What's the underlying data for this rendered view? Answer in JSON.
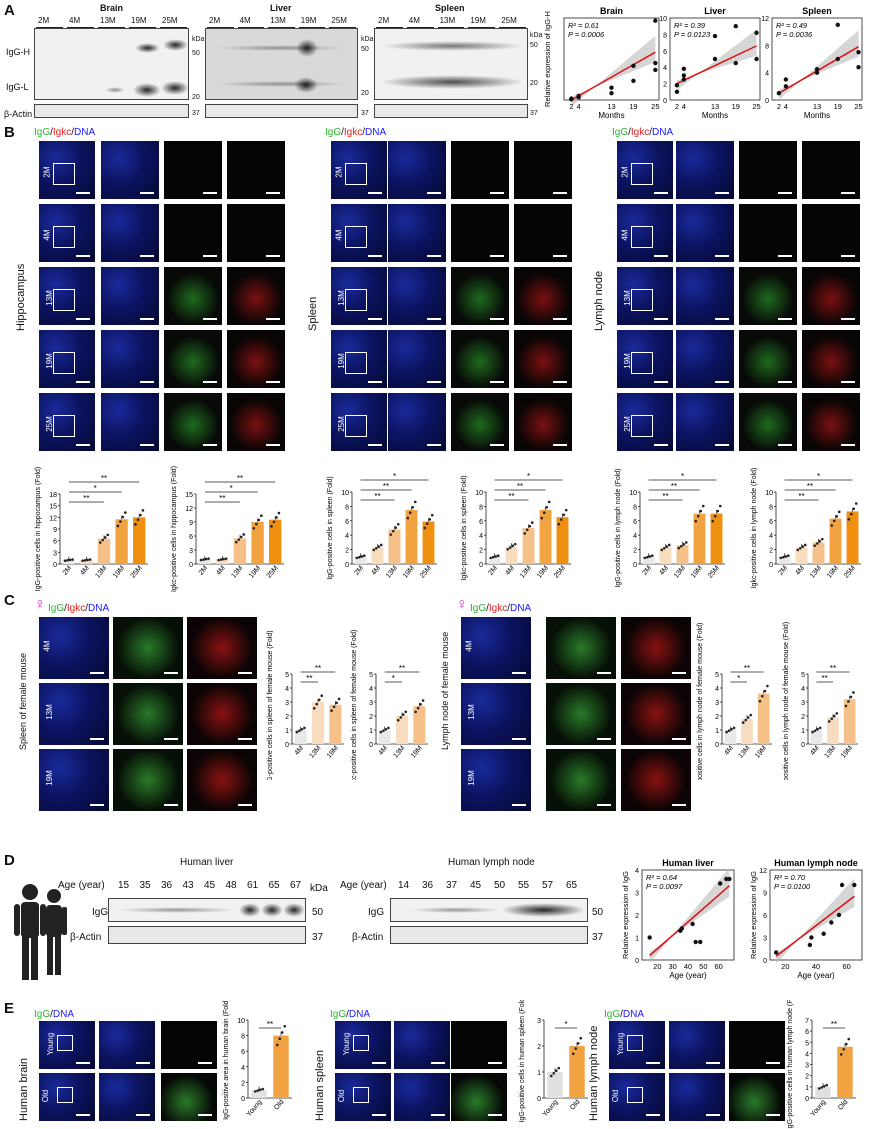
{
  "panels": {
    "A": "A",
    "B": "B",
    "C": "C",
    "D": "D",
    "E": "E"
  },
  "A": {
    "tissues": [
      "Brain",
      "Liver",
      "Spleen"
    ],
    "ages": [
      "2M",
      "4M",
      "13M",
      "19M",
      "25M"
    ],
    "igg_h": "IgG-H",
    "igg_l": "IgG-L",
    "actin": "β-Actin",
    "kda": "kDa",
    "mw": [
      "50",
      "20",
      "37"
    ],
    "scatter_ylabel": "Relative expression of IgG-H",
    "scatter_xlabel": "Months",
    "scatter_ticks": [
      "2",
      "4",
      "13",
      "19",
      "25"
    ]
  },
  "B": {
    "stain": {
      "igg": "IgG",
      "slash1": "/",
      "igkc": "Igkc",
      "slash2": "/",
      "dna": "DNA"
    },
    "tissues": [
      "Hippocampus",
      "Spleen",
      "Lymph node"
    ],
    "rows": [
      "2M",
      "4M",
      "13M",
      "19M",
      "25M"
    ]
  },
  "C": {
    "female_symbol": "♀",
    "left_tissue": "Spleen of female mouse",
    "right_tissue": "Lymph node of female mouse",
    "rows": [
      "4M",
      "13M",
      "19M"
    ]
  },
  "D": {
    "age_label": "Age (year)",
    "kda": "kDa",
    "liver_title": "Human liver",
    "lymph_title": "Human lymph node",
    "liver_ages": [
      "15",
      "35",
      "36",
      "43",
      "45",
      "48",
      "61",
      "65",
      "67"
    ],
    "lymph_ages": [
      "14",
      "36",
      "37",
      "45",
      "50",
      "55",
      "57",
      "65"
    ],
    "igg": "IgG",
    "actin": "β-Actin",
    "mw": [
      "50",
      "37"
    ],
    "scatter_ylabel": "Relative expression of IgG",
    "scatter_xlabel": "Age (year)"
  },
  "E": {
    "stain": {
      "igg": "IgG",
      "slash": "/",
      "dna": "DNA"
    },
    "tissues": [
      "Human brain",
      "Human spleen",
      "Human lymph node"
    ],
    "rows": [
      "Young",
      "Old"
    ]
  },
  "chart_data": [
    {
      "type": "scatter",
      "title": "Brain",
      "xlabel": "Months",
      "ylabel": "Relative expression of IgG-H",
      "annotation": [
        "R² = 0.61",
        "P = 0.0006"
      ],
      "xlim": [
        0,
        26
      ],
      "ylim": [
        0,
        60
      ],
      "x": [
        2,
        2,
        4,
        4,
        13,
        13,
        19,
        19,
        25,
        25,
        25
      ],
      "y": [
        0.5,
        1,
        2,
        3,
        5,
        9,
        14,
        25,
        27,
        22,
        58
      ],
      "fit": [
        [
          2,
          0
        ],
        [
          25,
          35
        ]
      ],
      "ticks": {
        "x": [
          "2",
          "4",
          "13",
          "19",
          "25"
        ]
      }
    },
    {
      "type": "scatter",
      "title": "Liver",
      "xlabel": "Months",
      "ylabel": "",
      "annotation": [
        "R² = 0.39",
        "P = 0.0123"
      ],
      "xlim": [
        0,
        26
      ],
      "ylim": [
        0,
        10
      ],
      "yticks": [
        "0",
        "2",
        "4",
        "6",
        "8",
        "10"
      ],
      "x": [
        2,
        2,
        4,
        4,
        4,
        13,
        13,
        19,
        19,
        25,
        25
      ],
      "y": [
        1,
        1.8,
        3,
        3.8,
        2.5,
        5,
        7.8,
        9,
        4.5,
        5,
        8.2
      ],
      "fit": [
        [
          2,
          2
        ],
        [
          25,
          6.6
        ]
      ]
    },
    {
      "type": "scatter",
      "title": "Spleen",
      "xlabel": "Months",
      "ylabel": "",
      "annotation": [
        "R² = 0.49",
        "P = 0.0036"
      ],
      "xlim": [
        0,
        26
      ],
      "ylim": [
        0,
        12
      ],
      "yticks": [
        "0",
        "4",
        "8",
        "12"
      ],
      "x": [
        2,
        4,
        4,
        13,
        13,
        19,
        19,
        25,
        25
      ],
      "y": [
        1,
        2,
        3,
        4,
        4.5,
        6,
        11,
        4.8,
        7
      ],
      "fit": [
        [
          2,
          1
        ],
        [
          25,
          7.8
        ]
      ]
    },
    {
      "type": "bar",
      "ylabel": "IgG-positive cells in hippocampus (Fold)",
      "categories": [
        "2M",
        "4M",
        "13M",
        "19M",
        "25M"
      ],
      "values": [
        1,
        1,
        6.5,
        11.5,
        12
      ],
      "ylim": [
        0,
        18
      ],
      "yticks": [
        "0",
        "3",
        "6",
        "9",
        "12",
        "15",
        "18"
      ],
      "sig": [
        {
          "from": 0,
          "to": 2,
          "label": "**"
        },
        {
          "from": 0,
          "to": 3,
          "label": "*"
        },
        {
          "from": 0,
          "to": 4,
          "label": "**"
        }
      ]
    },
    {
      "type": "bar",
      "ylabel": "Igkc-positive cells in hippocampus (Fold)",
      "categories": [
        "2M",
        "4M",
        "13M",
        "19M",
        "25M"
      ],
      "values": [
        1,
        1,
        5.5,
        9,
        9.5
      ],
      "ylim": [
        0,
        15
      ],
      "yticks": [
        "0",
        "3",
        "6",
        "9",
        "12",
        "15"
      ],
      "sig": [
        {
          "from": 0,
          "to": 2,
          "label": "**"
        },
        {
          "from": 0,
          "to": 3,
          "label": "*"
        },
        {
          "from": 0,
          "to": 4,
          "label": "**"
        }
      ]
    },
    {
      "type": "bar",
      "ylabel": "IgG-positive cells in spleen (Fold)",
      "categories": [
        "2M",
        "4M",
        "13M",
        "19M",
        "25M"
      ],
      "values": [
        1,
        2.3,
        4.8,
        7.5,
        5.9
      ],
      "ylim": [
        0,
        10
      ],
      "yticks": [
        "0",
        "2",
        "4",
        "6",
        "8",
        "10"
      ],
      "sig": [
        {
          "from": 0,
          "to": 2,
          "label": "**"
        },
        {
          "from": 0,
          "to": 3,
          "label": "**"
        },
        {
          "from": 0,
          "to": 4,
          "label": "*"
        }
      ]
    },
    {
      "type": "bar",
      "ylabel": "Igkc-positive cells in spleen (Fold)",
      "categories": [
        "2M",
        "4M",
        "13M",
        "19M",
        "25M"
      ],
      "values": [
        1,
        2.4,
        5,
        7.5,
        6.5
      ],
      "ylim": [
        0,
        10
      ],
      "yticks": [
        "0",
        "2",
        "4",
        "6",
        "8",
        "10"
      ],
      "sig": [
        {
          "from": 0,
          "to": 2,
          "label": "**"
        },
        {
          "from": 0,
          "to": 3,
          "label": "**"
        },
        {
          "from": 0,
          "to": 4,
          "label": "*"
        }
      ]
    },
    {
      "type": "bar",
      "ylabel": "IgG-positive cells in lymph node (Fold)",
      "categories": [
        "2M",
        "4M",
        "13M",
        "19M",
        "25M"
      ],
      "values": [
        1,
        2.3,
        2.6,
        7,
        7
      ],
      "ylim": [
        0,
        10
      ],
      "yticks": [
        "0",
        "2",
        "4",
        "6",
        "8",
        "10"
      ],
      "sig": [
        {
          "from": 0,
          "to": 2,
          "label": "**"
        },
        {
          "from": 0,
          "to": 3,
          "label": "**"
        },
        {
          "from": 0,
          "to": 4,
          "label": "*"
        }
      ]
    },
    {
      "type": "bar",
      "ylabel": "Igkc-positive cells in lymph node (Fold)",
      "categories": [
        "2M",
        "4M",
        "13M",
        "19M",
        "25M"
      ],
      "values": [
        1,
        2.3,
        3,
        6.3,
        7.3
      ],
      "ylim": [
        0,
        10
      ],
      "yticks": [
        "0",
        "2",
        "4",
        "6",
        "8",
        "10"
      ],
      "sig": [
        {
          "from": 0,
          "to": 2,
          "label": "**"
        },
        {
          "from": 0,
          "to": 3,
          "label": "**"
        },
        {
          "from": 0,
          "to": 4,
          "label": "*"
        }
      ]
    },
    {
      "type": "bar",
      "ylabel": "IgG-positive cells in spleen of female mouse (Fold)",
      "categories": [
        "4M",
        "13M",
        "19M"
      ],
      "values": [
        1,
        3,
        2.8
      ],
      "ylim": [
        0,
        5
      ],
      "yticks": [
        "0",
        "1",
        "2",
        "3",
        "4",
        "5"
      ],
      "sig": [
        {
          "from": 0,
          "to": 1,
          "label": "**"
        },
        {
          "from": 0,
          "to": 2,
          "label": "**"
        }
      ]
    },
    {
      "type": "bar",
      "ylabel": "Igkc-positive cells in spleen of female mouse (Fold)",
      "categories": [
        "4M",
        "13M",
        "19M"
      ],
      "values": [
        1,
        2,
        2.7
      ],
      "ylim": [
        0,
        5
      ],
      "yticks": [
        "0",
        "1",
        "2",
        "3",
        "4",
        "5"
      ],
      "sig": [
        {
          "from": 0,
          "to": 1,
          "label": "*"
        },
        {
          "from": 0,
          "to": 2,
          "label": "**"
        }
      ]
    },
    {
      "type": "bar",
      "ylabel": "IgG-positive cells in lymph node of female mouse (Fold)",
      "categories": [
        "4M",
        "13M",
        "19M"
      ],
      "values": [
        1,
        1.8,
        3.6
      ],
      "ylim": [
        0,
        5
      ],
      "yticks": [
        "0",
        "1",
        "2",
        "3",
        "4",
        "5"
      ],
      "sig": [
        {
          "from": 0,
          "to": 1,
          "label": "*"
        },
        {
          "from": 0,
          "to": 2,
          "label": "**"
        }
      ]
    },
    {
      "type": "bar",
      "ylabel": "Igkc-positive cells in lymph node of female mouse (Fold)",
      "categories": [
        "4M",
        "13M",
        "19M"
      ],
      "values": [
        1,
        1.9,
        3.2
      ],
      "ylim": [
        0,
        5
      ],
      "yticks": [
        "0",
        "1",
        "2",
        "3",
        "4",
        "5"
      ],
      "sig": [
        {
          "from": 0,
          "to": 1,
          "label": "**"
        },
        {
          "from": 0,
          "to": 2,
          "label": "**"
        }
      ]
    },
    {
      "type": "scatter",
      "title": "Human liver",
      "xlabel": "Age (year)",
      "ylabel": "Relative expression of IgG",
      "annotation": [
        "R² = 0.64",
        "P = 0.0097"
      ],
      "xlim": [
        10,
        70
      ],
      "ylim": [
        0,
        4
      ],
      "yticks": [
        "0",
        "1",
        "2",
        "3",
        "4"
      ],
      "xticks": [
        "20",
        "30",
        "40",
        "50",
        "60"
      ],
      "x": [
        15,
        35,
        36,
        43,
        45,
        48,
        61,
        65,
        67
      ],
      "y": [
        1,
        1.3,
        1.4,
        1.6,
        0.8,
        0.8,
        3.4,
        3.6,
        3.6
      ],
      "fit": [
        [
          15,
          0.2
        ],
        [
          67,
          3.3
        ]
      ]
    },
    {
      "type": "scatter",
      "title": "Human lymph node",
      "xlabel": "Age (year)",
      "ylabel": "Relative expression of IgG",
      "annotation": [
        "R² = 0.70",
        "P = 0.0100"
      ],
      "xlim": [
        10,
        70
      ],
      "ylim": [
        0,
        12
      ],
      "yticks": [
        "0",
        "3",
        "6",
        "9",
        "12"
      ],
      "xticks": [
        "20",
        "40",
        "60"
      ],
      "x": [
        14,
        36,
        37,
        45,
        50,
        55,
        57,
        65
      ],
      "y": [
        1,
        2,
        3,
        3.5,
        5,
        6,
        10,
        10
      ],
      "fit": [
        [
          14,
          0.5
        ],
        [
          65,
          8.5
        ]
      ]
    },
    {
      "type": "bar",
      "ylabel": "IgG-positive area in human brain (Fold)",
      "categories": [
        "Young",
        "Old"
      ],
      "values": [
        1,
        8
      ],
      "ylim": [
        0,
        10
      ],
      "yticks": [
        "0",
        "2",
        "4",
        "6",
        "8",
        "10"
      ],
      "sig": [
        {
          "from": 0,
          "to": 1,
          "label": "**"
        }
      ]
    },
    {
      "type": "bar",
      "ylabel": "IgG-positive cells in human spleen (Fold)",
      "categories": [
        "Young",
        "Old"
      ],
      "values": [
        1,
        2
      ],
      "ylim": [
        0,
        3
      ],
      "yticks": [
        "0",
        "1",
        "2",
        "3"
      ],
      "sig": [
        {
          "from": 0,
          "to": 1,
          "label": "*"
        }
      ]
    },
    {
      "type": "bar",
      "ylabel": "IgG-positive cells in human lymph node (Fold)",
      "categories": [
        "Young",
        "Old"
      ],
      "values": [
        1,
        4.6
      ],
      "ylim": [
        0,
        7
      ],
      "yticks": [
        "0",
        "1",
        "2",
        "3",
        "4",
        "5",
        "6",
        "7"
      ],
      "sig": [
        {
          "from": 0,
          "to": 1,
          "label": "**"
        }
      ]
    }
  ]
}
